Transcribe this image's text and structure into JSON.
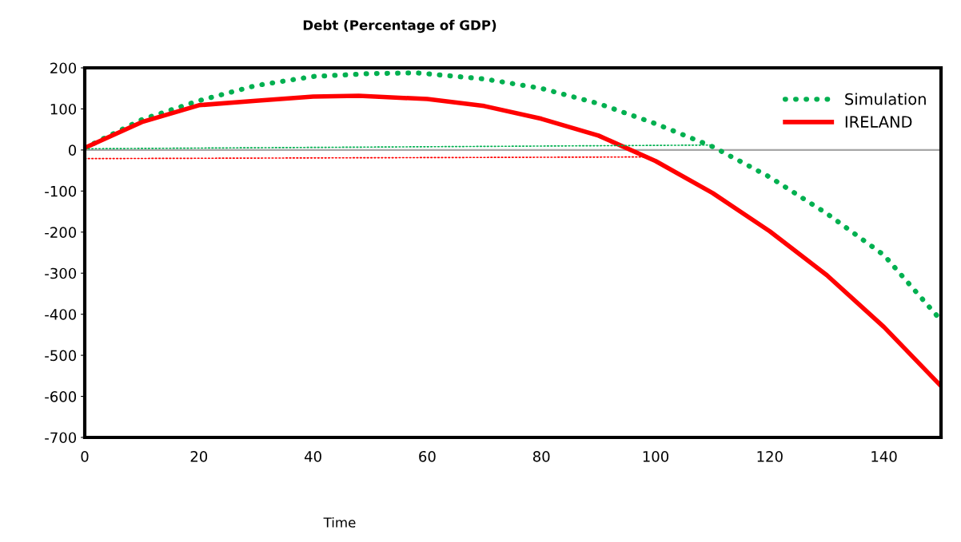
{
  "chart_data": {
    "type": "line",
    "title": "Debt (Percentage of GDP)",
    "xlabel": "Time",
    "xlim": [
      0,
      150
    ],
    "xticks": [
      0,
      20,
      40,
      60,
      80,
      100,
      120,
      140
    ],
    "ylim": [
      -700,
      200
    ],
    "yticks": [
      -700,
      -600,
      -500,
      -400,
      -300,
      -200,
      -100,
      0,
      100,
      200
    ],
    "grid": false,
    "legend": "top right",
    "ref_lines": [
      {
        "axis": "y",
        "value": 0,
        "color": "#a6a6a6"
      }
    ],
    "series": [
      {
        "name": "Simulation",
        "color": "#00b050",
        "line_style": "dotted",
        "x": [
          0,
          10,
          20,
          30,
          40,
          50,
          58,
          70,
          80,
          90,
          100,
          110,
          120,
          130,
          140,
          150
        ],
        "values": [
          5,
          74,
          120,
          157,
          179,
          186,
          188,
          173,
          150,
          113,
          64,
          8,
          -66,
          -155,
          -256,
          -415
        ]
      },
      {
        "name": "IRELAND",
        "color": "#ff0000",
        "line_style": "solid",
        "x": [
          0,
          10,
          20,
          30,
          40,
          48,
          60,
          70,
          80,
          90,
          100,
          110,
          120,
          130,
          140,
          150
        ],
        "values": [
          5,
          68,
          109,
          120,
          130,
          132,
          124,
          107,
          76,
          35,
          -27,
          -105,
          -198,
          -305,
          -431,
          -575
        ]
      },
      {
        "color": "#00b050",
        "line_style": "dotted",
        "x": [
          0,
          110
        ],
        "values": [
          3,
          12
        ]
      },
      {
        "color": "#ff0000",
        "line_style": "dotted",
        "x": [
          0,
          98
        ],
        "values": [
          -21,
          -17
        ]
      }
    ]
  }
}
